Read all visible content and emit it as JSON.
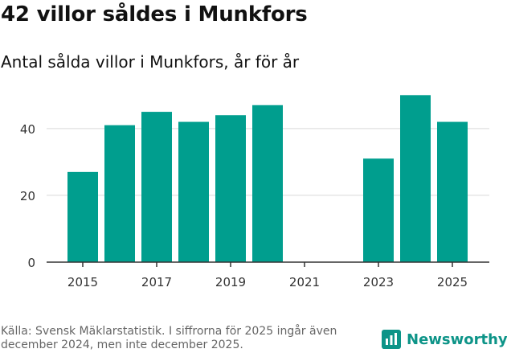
{
  "title": "42 villor såldes i Munkfors",
  "subtitle": "Antal sålda villor i Munkfors, år för år",
  "footer": "Källa: Svensk Mäklarstatistik. I siffrorna för 2025 ingår även december 2024, men inte december 2025.",
  "brand": "Newsworthy",
  "colors": {
    "bar": "#009e8e",
    "brand": "#0d9488",
    "grid": "#d9d9d9",
    "axis": "#333333"
  },
  "chart_data": {
    "type": "bar",
    "title": "Antal sålda villor i Munkfors, år för år",
    "xlabel": "",
    "ylabel": "",
    "categories": [
      "2015",
      "2016",
      "2017",
      "2018",
      "2019",
      "2020",
      "2021",
      "2022",
      "2023",
      "2024",
      "2025"
    ],
    "values": [
      27,
      41,
      45,
      42,
      44,
      47,
      null,
      null,
      31,
      50,
      42
    ],
    "ylim": [
      0,
      52
    ],
    "yticks": [
      0,
      20,
      40
    ],
    "xticks": [
      "2015",
      "2017",
      "2019",
      "2021",
      "2023",
      "2025"
    ],
    "grid": true
  }
}
